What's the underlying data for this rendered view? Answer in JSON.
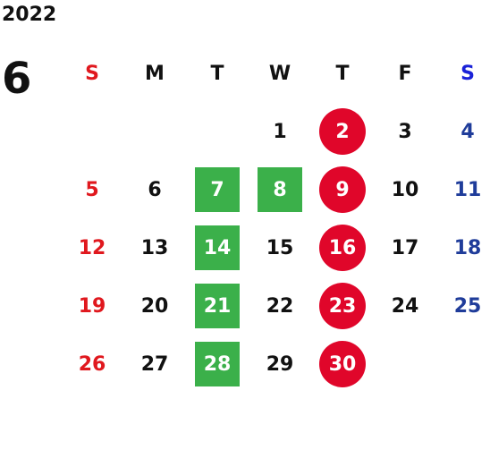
{
  "year": "2022",
  "month": "6",
  "weekdays": [
    "S",
    "M",
    "T",
    "W",
    "T",
    "F",
    "S"
  ],
  "colors": {
    "sunday": "#e0181e",
    "saturday": "#1f3c9a",
    "green_highlight": "#3bb04a",
    "red_highlight": "#e0062a"
  },
  "days": [
    {
      "label": "1",
      "col": 3,
      "row": 0,
      "style": "plain"
    },
    {
      "label": "2",
      "col": 4,
      "row": 0,
      "style": "red"
    },
    {
      "label": "3",
      "col": 5,
      "row": 0,
      "style": "plain"
    },
    {
      "label": "4",
      "col": 6,
      "row": 0,
      "style": "sat"
    },
    {
      "label": "5",
      "col": 0,
      "row": 1,
      "style": "sun"
    },
    {
      "label": "6",
      "col": 1,
      "row": 1,
      "style": "plain"
    },
    {
      "label": "7",
      "col": 2,
      "row": 1,
      "style": "green"
    },
    {
      "label": "8",
      "col": 3,
      "row": 1,
      "style": "green"
    },
    {
      "label": "9",
      "col": 4,
      "row": 1,
      "style": "red"
    },
    {
      "label": "10",
      "col": 5,
      "row": 1,
      "style": "plain"
    },
    {
      "label": "11",
      "col": 6,
      "row": 1,
      "style": "sat"
    },
    {
      "label": "12",
      "col": 0,
      "row": 2,
      "style": "sun"
    },
    {
      "label": "13",
      "col": 1,
      "row": 2,
      "style": "plain"
    },
    {
      "label": "14",
      "col": 2,
      "row": 2,
      "style": "green"
    },
    {
      "label": "15",
      "col": 3,
      "row": 2,
      "style": "plain"
    },
    {
      "label": "16",
      "col": 4,
      "row": 2,
      "style": "red"
    },
    {
      "label": "17",
      "col": 5,
      "row": 2,
      "style": "plain"
    },
    {
      "label": "18",
      "col": 6,
      "row": 2,
      "style": "sat"
    },
    {
      "label": "19",
      "col": 0,
      "row": 3,
      "style": "sun"
    },
    {
      "label": "20",
      "col": 1,
      "row": 3,
      "style": "plain"
    },
    {
      "label": "21",
      "col": 2,
      "row": 3,
      "style": "green"
    },
    {
      "label": "22",
      "col": 3,
      "row": 3,
      "style": "plain"
    },
    {
      "label": "23",
      "col": 4,
      "row": 3,
      "style": "red"
    },
    {
      "label": "24",
      "col": 5,
      "row": 3,
      "style": "plain"
    },
    {
      "label": "25",
      "col": 6,
      "row": 3,
      "style": "sat"
    },
    {
      "label": "26",
      "col": 0,
      "row": 4,
      "style": "sun"
    },
    {
      "label": "27",
      "col": 1,
      "row": 4,
      "style": "plain"
    },
    {
      "label": "28",
      "col": 2,
      "row": 4,
      "style": "green"
    },
    {
      "label": "29",
      "col": 3,
      "row": 4,
      "style": "plain"
    },
    {
      "label": "30",
      "col": 4,
      "row": 4,
      "style": "red"
    }
  ]
}
